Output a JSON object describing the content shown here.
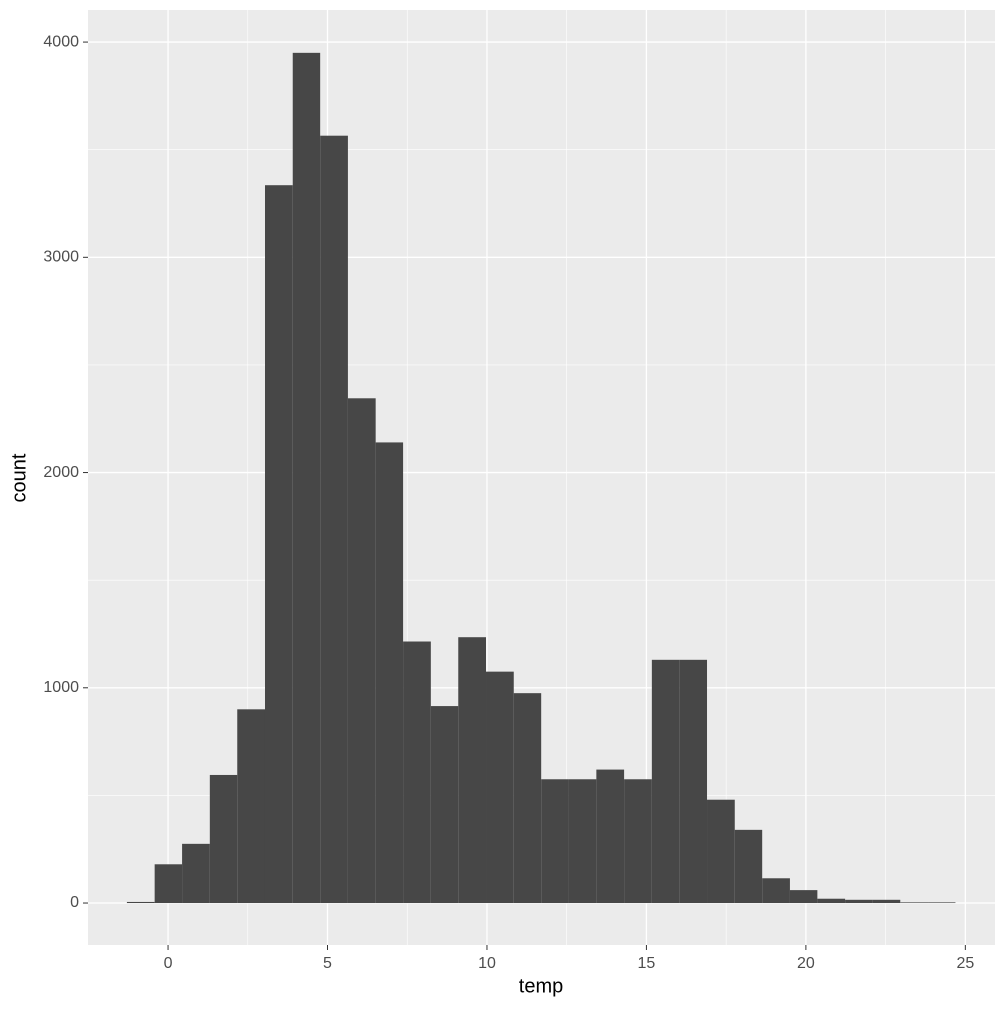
{
  "chart_data": {
    "type": "histogram",
    "x_label": "temp",
    "y_label": "count",
    "bins": [
      -1.29,
      -0.42,
      0.44,
      1.31,
      2.17,
      3.04,
      3.91,
      4.77,
      5.64,
      6.51,
      7.37,
      8.24,
      9.1,
      9.97,
      10.84,
      11.7,
      12.57,
      13.43,
      14.3,
      15.17,
      16.03,
      16.9,
      17.77,
      18.63,
      19.5,
      20.36,
      21.23,
      22.1,
      22.96,
      23.83,
      24.69
    ],
    "values": [
      5,
      180,
      275,
      595,
      900,
      3335,
      3950,
      3565,
      2345,
      2140,
      1215,
      915,
      1235,
      1075,
      975,
      575,
      575,
      620,
      575,
      1130,
      1130,
      480,
      340,
      115,
      60,
      20,
      15,
      15,
      3,
      3
    ],
    "color": "#474747",
    "xlim": [
      -2.51,
      25.93
    ],
    "xticks": [
      0,
      5,
      10,
      15,
      20,
      25
    ],
    "ylim": [
      -195,
      4149
    ],
    "yticks": [
      0,
      1000,
      2000,
      3000,
      4000
    ],
    "grid": true
  }
}
